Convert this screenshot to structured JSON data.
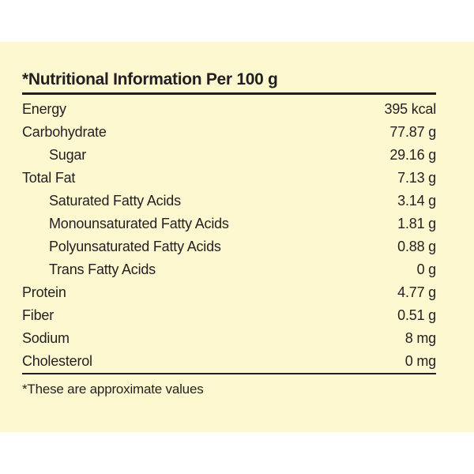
{
  "label": {
    "title": "*Nutritional Information Per 100 g",
    "rows": [
      {
        "name": "Energy",
        "value": "395 kcal",
        "indent": false
      },
      {
        "name": "Carbohydrate",
        "value": "77.87 g",
        "indent": false
      },
      {
        "name": "Sugar",
        "value": "29.16 g",
        "indent": true
      },
      {
        "name": "Total Fat",
        "value": "7.13 g",
        "indent": false
      },
      {
        "name": "Saturated Fatty Acids",
        "value": "3.14 g",
        "indent": true
      },
      {
        "name": "Monounsaturated Fatty Acids",
        "value": "1.81 g",
        "indent": true
      },
      {
        "name": "Polyunsaturated Fatty Acids",
        "value": "0.88 g",
        "indent": true
      },
      {
        "name": "Trans Fatty Acids",
        "value": "0 g",
        "indent": true
      },
      {
        "name": "Protein",
        "value": "4.77 g",
        "indent": false
      },
      {
        "name": "Fiber",
        "value": "0.51 g",
        "indent": false
      },
      {
        "name": "Sodium",
        "value": "8 mg",
        "indent": false
      },
      {
        "name": "Cholesterol",
        "value": "0 mg",
        "indent": false
      }
    ],
    "footnote": "*These are approximate values"
  },
  "colors": {
    "background": "#fdf8cf",
    "text": "#231f20"
  }
}
